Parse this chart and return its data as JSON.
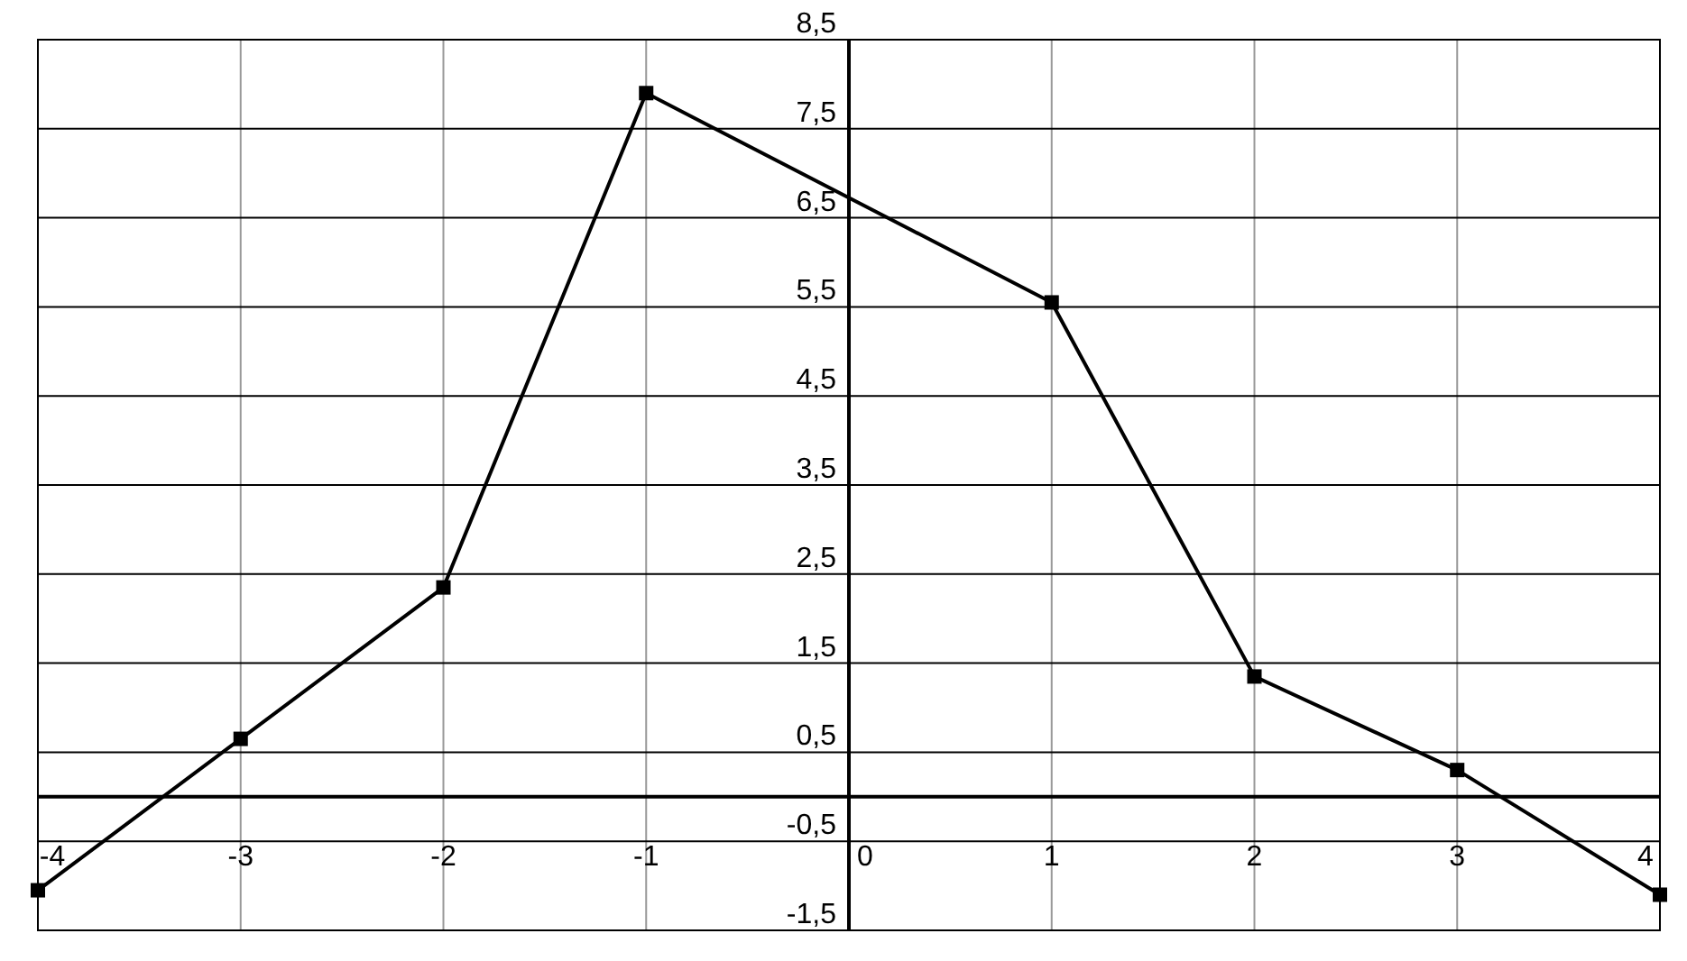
{
  "chart_data": {
    "type": "line",
    "x": [
      -4,
      -3,
      -2,
      -1,
      1,
      2,
      3,
      4
    ],
    "series": [
      {
        "color": "#000000",
        "values": [
          -1.05,
          0.65,
          2.35,
          7.9,
          5.55,
          1.35,
          0.3,
          -1.1
        ]
      }
    ],
    "xlim": [
      -4,
      4
    ],
    "ylim": [
      -1.5,
      8.5
    ],
    "xticks": [
      -4,
      -3,
      -2,
      -1,
      0,
      1,
      2,
      3,
      4
    ],
    "yticks": [
      {
        "value": 8.5,
        "label": "8,5"
      },
      {
        "value": 7.5,
        "label": "7,5"
      },
      {
        "value": 6.5,
        "label": "6,5"
      },
      {
        "value": 5.5,
        "label": "5,5"
      },
      {
        "value": 4.5,
        "label": "4,5"
      },
      {
        "value": 3.5,
        "label": "3,5"
      },
      {
        "value": 2.5,
        "label": "2,5"
      },
      {
        "value": 1.5,
        "label": "1,5"
      },
      {
        "value": 0.5,
        "label": "0,5"
      },
      {
        "value": -0.5,
        "label": "-0,5"
      },
      {
        "value": -1.5,
        "label": "-1,5"
      }
    ],
    "grid": true,
    "marker": "square",
    "line_style": "solid"
  }
}
